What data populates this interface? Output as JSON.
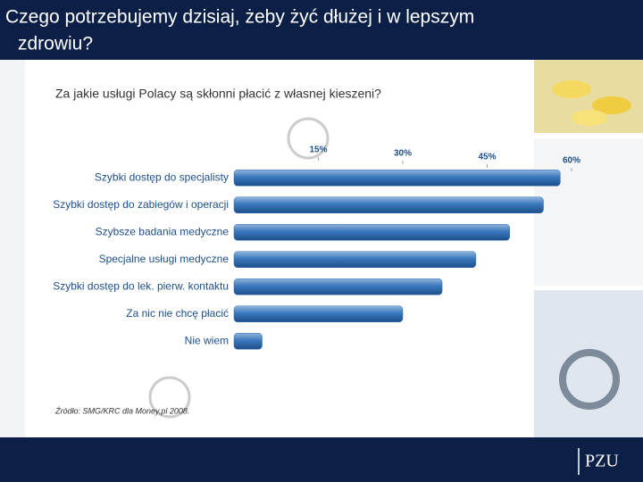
{
  "slide": {
    "title": "Czego potrzebujemy dzisiaj, żeby żyć dłużej i w lepszym zdrowiu?",
    "source": "Źródło: SMG/KRC dla Money.pl 2008.",
    "logo": "PZU"
  },
  "chart_data": {
    "type": "bar",
    "orientation": "horizontal",
    "title": "Za jakie usługi Polacy są skłonni płacić z własnej kieszeni?",
    "categories": [
      "Szybki dostęp do specjalisty",
      "Szybki dostęp do zabiegów i operacji",
      "Szybsze badania medyczne",
      "Specjalne usługi medyczne",
      "Szybki dostęp do lek. pierw. kontaktu",
      "Za nic nie chcę płacić",
      "Nie wiem"
    ],
    "values": [
      58,
      55,
      49,
      43,
      37,
      30,
      5
    ],
    "color": "#2f6fb3",
    "xlim": [
      0,
      60
    ],
    "xticks": [
      {
        "value": 15,
        "label": "15%"
      },
      {
        "value": 30,
        "label": "30%"
      },
      {
        "value": 45,
        "label": "45%"
      },
      {
        "value": 60,
        "label": "60%"
      }
    ],
    "grid": false
  }
}
